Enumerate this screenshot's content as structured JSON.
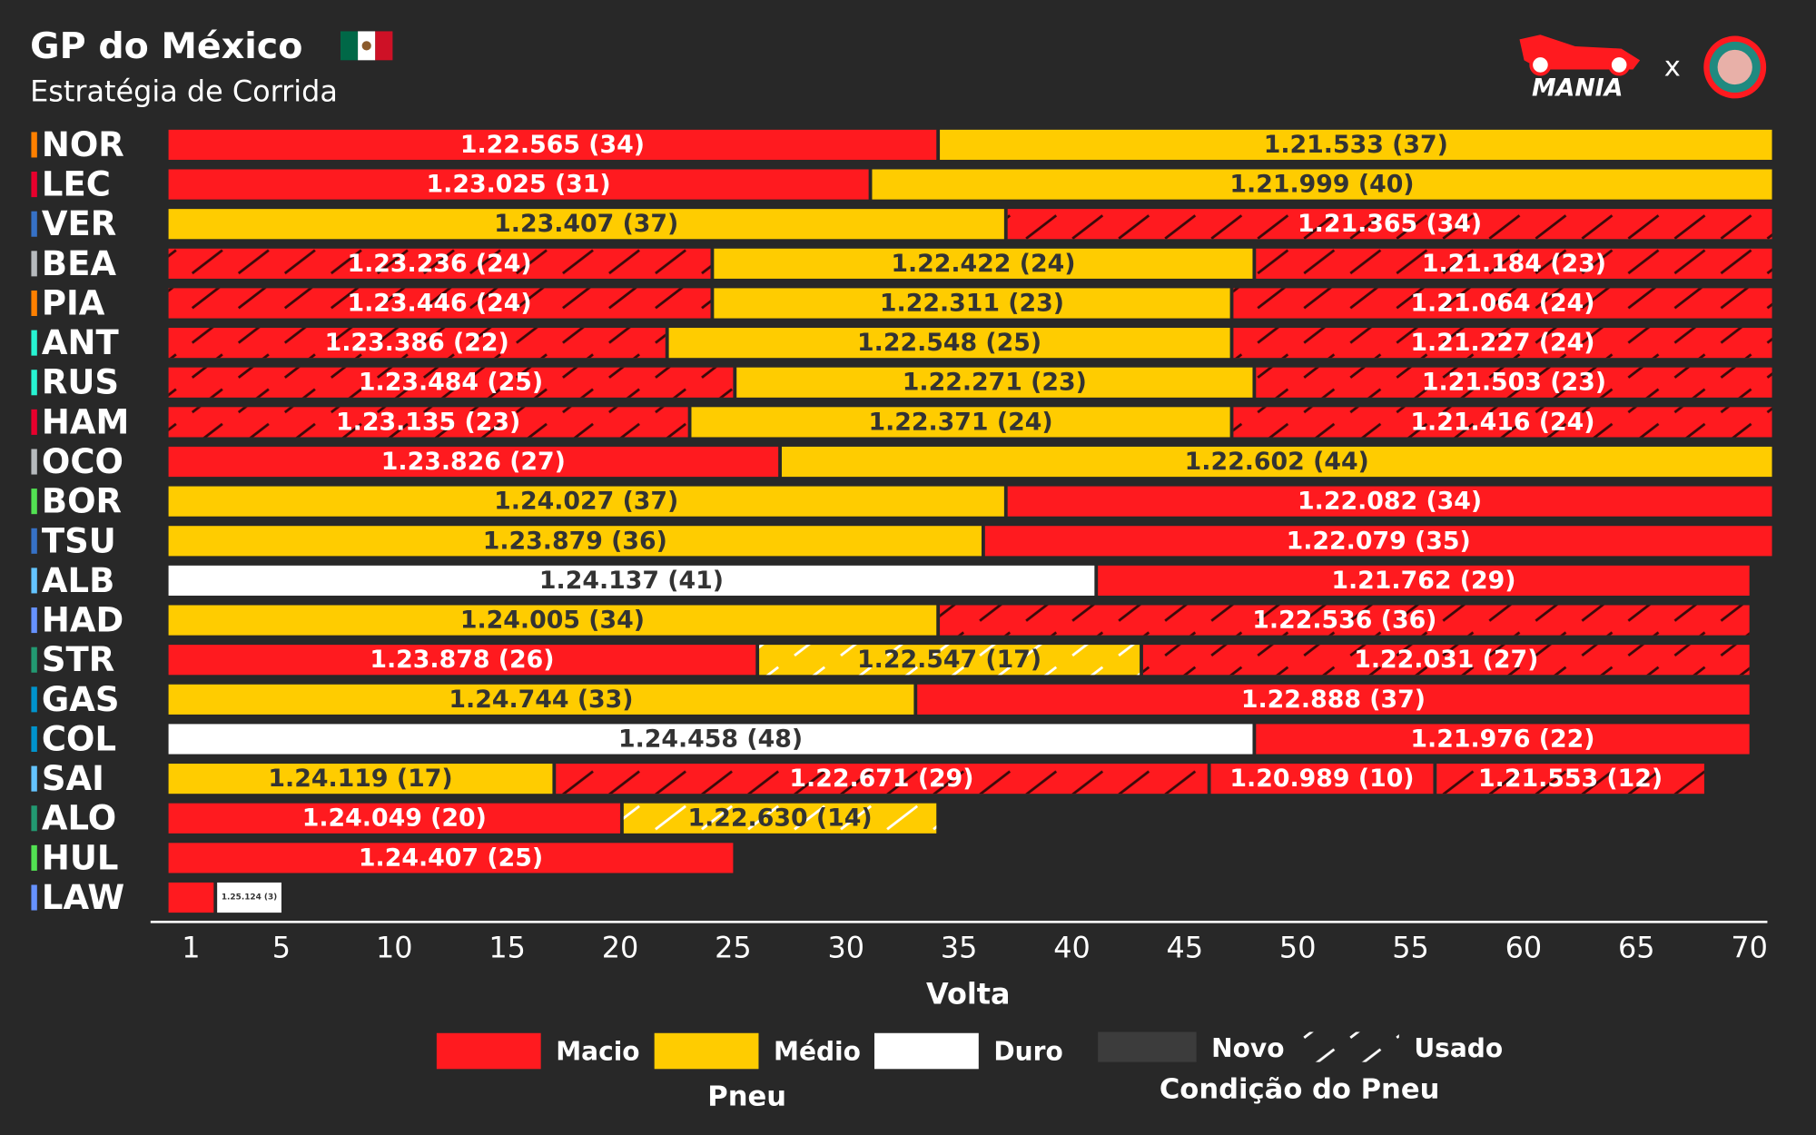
{
  "header": {
    "title": "GP do México",
    "subtitle": "Estratégia de Corrida",
    "logo_text": "MANIA",
    "logo_separator": "x"
  },
  "chart_data": {
    "type": "bar",
    "orientation": "horizontal",
    "stacked": true,
    "xlabel": "Volta",
    "xlim": [
      0,
      71
    ],
    "xticks": [
      1,
      5,
      10,
      15,
      20,
      25,
      30,
      35,
      40,
      45,
      50,
      55,
      60,
      65,
      70
    ],
    "compound_legend_title": "Pneu",
    "condition_legend_title": "Condição do Pneu",
    "compounds": [
      {
        "name": "Macio",
        "color": "#ff1a1f"
      },
      {
        "name": "Médio",
        "color": "#ffcc00"
      },
      {
        "name": "Duro",
        "color": "#ffffff"
      }
    ],
    "conditions": [
      {
        "name": "Novo",
        "used": false
      },
      {
        "name": "Usado",
        "used": true
      }
    ],
    "drivers": [
      {
        "name": "NOR",
        "team_color": "#ff8000",
        "stints": [
          {
            "laps": 34,
            "compound": "Macio",
            "used": false,
            "label": "1.22.565 (34)"
          },
          {
            "laps": 37,
            "compound": "Médio",
            "used": false,
            "label": "1.21.533 (37)"
          }
        ]
      },
      {
        "name": "LEC",
        "team_color": "#e8002d",
        "stints": [
          {
            "laps": 31,
            "compound": "Macio",
            "used": false,
            "label": "1.23.025 (31)"
          },
          {
            "laps": 40,
            "compound": "Médio",
            "used": false,
            "label": "1.21.999 (40)"
          }
        ]
      },
      {
        "name": "VER",
        "team_color": "#3671c6",
        "stints": [
          {
            "laps": 37,
            "compound": "Médio",
            "used": false,
            "label": "1.23.407 (37)"
          },
          {
            "laps": 34,
            "compound": "Macio",
            "used": true,
            "label": "1.21.365 (34)"
          }
        ]
      },
      {
        "name": "BEA",
        "team_color": "#b6babd",
        "stints": [
          {
            "laps": 24,
            "compound": "Macio",
            "used": true,
            "label": "1.23.236 (24)"
          },
          {
            "laps": 24,
            "compound": "Médio",
            "used": false,
            "label": "1.22.422 (24)"
          },
          {
            "laps": 23,
            "compound": "Macio",
            "used": true,
            "label": "1.21.184 (23)"
          }
        ]
      },
      {
        "name": "PIA",
        "team_color": "#ff8000",
        "stints": [
          {
            "laps": 24,
            "compound": "Macio",
            "used": true,
            "label": "1.23.446 (24)"
          },
          {
            "laps": 23,
            "compound": "Médio",
            "used": false,
            "label": "1.22.311 (23)"
          },
          {
            "laps": 24,
            "compound": "Macio",
            "used": true,
            "label": "1.21.064 (24)"
          }
        ]
      },
      {
        "name": "ANT",
        "team_color": "#27f4d2",
        "stints": [
          {
            "laps": 22,
            "compound": "Macio",
            "used": true,
            "label": "1.23.386 (22)"
          },
          {
            "laps": 25,
            "compound": "Médio",
            "used": false,
            "label": "1.22.548 (25)"
          },
          {
            "laps": 24,
            "compound": "Macio",
            "used": true,
            "label": "1.21.227 (24)"
          }
        ]
      },
      {
        "name": "RUS",
        "team_color": "#27f4d2",
        "stints": [
          {
            "laps": 25,
            "compound": "Macio",
            "used": true,
            "label": "1.23.484 (25)"
          },
          {
            "laps": 23,
            "compound": "Médio",
            "used": false,
            "label": "1.22.271 (23)"
          },
          {
            "laps": 23,
            "compound": "Macio",
            "used": true,
            "label": "1.21.503 (23)"
          }
        ]
      },
      {
        "name": "HAM",
        "team_color": "#e8002d",
        "stints": [
          {
            "laps": 23,
            "compound": "Macio",
            "used": true,
            "label": "1.23.135 (23)"
          },
          {
            "laps": 24,
            "compound": "Médio",
            "used": false,
            "label": "1.22.371 (24)"
          },
          {
            "laps": 24,
            "compound": "Macio",
            "used": true,
            "label": "1.21.416 (24)"
          }
        ]
      },
      {
        "name": "OCO",
        "team_color": "#b6babd",
        "stints": [
          {
            "laps": 27,
            "compound": "Macio",
            "used": false,
            "label": "1.23.826 (27)"
          },
          {
            "laps": 44,
            "compound": "Médio",
            "used": false,
            "label": "1.22.602 (44)"
          }
        ]
      },
      {
        "name": "BOR",
        "team_color": "#52e252",
        "stints": [
          {
            "laps": 37,
            "compound": "Médio",
            "used": false,
            "label": "1.24.027 (37)"
          },
          {
            "laps": 34,
            "compound": "Macio",
            "used": false,
            "label": "1.22.082 (34)"
          }
        ]
      },
      {
        "name": "TSU",
        "team_color": "#3671c6",
        "stints": [
          {
            "laps": 36,
            "compound": "Médio",
            "used": false,
            "label": "1.23.879 (36)"
          },
          {
            "laps": 35,
            "compound": "Macio",
            "used": false,
            "label": "1.22.079 (35)"
          }
        ]
      },
      {
        "name": "ALB",
        "team_color": "#64c4ff",
        "stints": [
          {
            "laps": 41,
            "compound": "Duro",
            "used": false,
            "label": "1.24.137 (41)"
          },
          {
            "laps": 29,
            "compound": "Macio",
            "used": false,
            "label": "1.21.762 (29)"
          }
        ]
      },
      {
        "name": "HAD",
        "team_color": "#6692ff",
        "stints": [
          {
            "laps": 34,
            "compound": "Médio",
            "used": false,
            "label": "1.24.005 (34)"
          },
          {
            "laps": 36,
            "compound": "Macio",
            "used": true,
            "label": "1.22.536 (36)"
          }
        ]
      },
      {
        "name": "STR",
        "team_color": "#229971",
        "stints": [
          {
            "laps": 26,
            "compound": "Macio",
            "used": false,
            "label": "1.23.878 (26)"
          },
          {
            "laps": 17,
            "compound": "Médio",
            "used": true,
            "label": "1.22.547 (17)"
          },
          {
            "laps": 27,
            "compound": "Macio",
            "used": true,
            "label": "1.22.031 (27)"
          }
        ]
      },
      {
        "name": "GAS",
        "team_color": "#0093cc",
        "stints": [
          {
            "laps": 33,
            "compound": "Médio",
            "used": false,
            "label": "1.24.744 (33)"
          },
          {
            "laps": 37,
            "compound": "Macio",
            "used": false,
            "label": "1.22.888 (37)"
          }
        ]
      },
      {
        "name": "COL",
        "team_color": "#0093cc",
        "stints": [
          {
            "laps": 48,
            "compound": "Duro",
            "used": false,
            "label": "1.24.458 (48)"
          },
          {
            "laps": 22,
            "compound": "Macio",
            "used": false,
            "label": "1.21.976 (22)"
          }
        ]
      },
      {
        "name": "SAI",
        "team_color": "#64c4ff",
        "stints": [
          {
            "laps": 17,
            "compound": "Médio",
            "used": false,
            "label": "1.24.119 (17)"
          },
          {
            "laps": 29,
            "compound": "Macio",
            "used": true,
            "label": "1.22.671 (29)"
          },
          {
            "laps": 10,
            "compound": "Macio",
            "used": false,
            "label": "1.20.989 (10)"
          },
          {
            "laps": 12,
            "compound": "Macio",
            "used": true,
            "label": "1.21.553 (12)"
          }
        ]
      },
      {
        "name": "ALO",
        "team_color": "#229971",
        "stints": [
          {
            "laps": 20,
            "compound": "Macio",
            "used": false,
            "label": "1.24.049 (20)"
          },
          {
            "laps": 14,
            "compound": "Médio",
            "used": true,
            "label": "1.22.630 (14)"
          }
        ]
      },
      {
        "name": "HUL",
        "team_color": "#52e252",
        "stints": [
          {
            "laps": 25,
            "compound": "Macio",
            "used": false,
            "label": "1.24.407 (25)"
          }
        ]
      },
      {
        "name": "LAW",
        "team_color": "#6692ff",
        "stints": [
          {
            "laps": 2,
            "compound": "Macio",
            "used": false,
            "label": null
          },
          {
            "laps": 3,
            "compound": "Duro",
            "used": false,
            "label": "1.25.124 (3)"
          }
        ]
      }
    ]
  }
}
